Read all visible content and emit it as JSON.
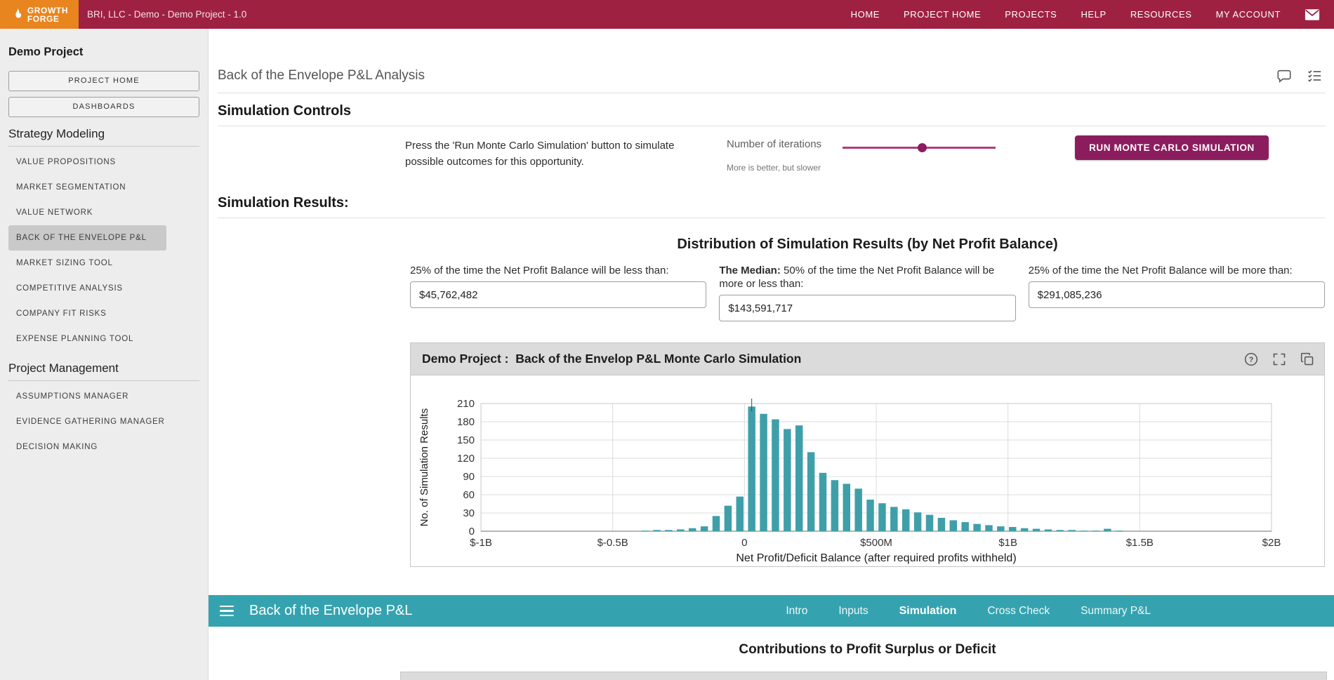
{
  "colors": {
    "topbar": "#9E2142",
    "logo_bg": "#E8851E",
    "accent": "#8b1d5f",
    "teal_bar": "#35A3AF",
    "chart_bar": "#3F9FA9",
    "sidebar_selected": "#c9c9c9"
  },
  "topbar": {
    "logo_line1": "GROWTH",
    "logo_line2": "FORGE",
    "breadcrumb": "BRI, LLC - Demo - Demo Project - 1.0",
    "nav": [
      "HOME",
      "PROJECT HOME",
      "PROJECTS",
      "HELP",
      "RESOURCES",
      "MY ACCOUNT"
    ]
  },
  "sidebar": {
    "project_title": "Demo Project",
    "buttons": [
      "PROJECT HOME",
      "DASHBOARDS"
    ],
    "sections": [
      {
        "title": "Strategy Modeling",
        "items": [
          "VALUE PROPOSITIONS",
          "MARKET SEGMENTATION",
          "VALUE NETWORK",
          "BACK OF THE ENVELOPE P&L",
          "MARKET SIZING TOOL",
          "COMPETITIVE ANALYSIS",
          "COMPANY FIT RISKS",
          "EXPENSE PLANNING TOOL"
        ],
        "selected_index": 3
      },
      {
        "title": "Project Management",
        "items": [
          "ASSUMPTIONS MANAGER",
          "EVIDENCE GATHERING MANAGER",
          "DECISION MAKING"
        ]
      }
    ]
  },
  "main": {
    "page_title": "Back of the Envelope P&L Analysis",
    "controls": {
      "heading": "Simulation Controls",
      "instruction": "Press the 'Run Monte Carlo Simulation' button to simulate possible outcomes for this opportunity.",
      "iterations_label": "Number of iterations",
      "iterations_note": "More is better, but slower",
      "slider_position_pct": 52,
      "run_button": "RUN MONTE CARLO SIMULATION"
    },
    "results": {
      "heading": "Simulation Results:",
      "distribution_title": "Distribution of Simulation Results (by Net Profit Balance)",
      "stats": [
        {
          "label_prefix": "",
          "label_rest": "25% of the time the Net Profit Balance will be less than:",
          "value": "$45,762,482"
        },
        {
          "label_prefix": "The Median:",
          "label_rest": " 50% of the time the Net Profit Balance will be more or less than:",
          "value": "$143,591,717"
        },
        {
          "label_prefix": "",
          "label_rest": "25% of the time the Net Profit Balance will be more than:",
          "value": "$291,085,236"
        }
      ]
    },
    "footer_bar": {
      "title": "Back of the Envelope P&L",
      "tabs": [
        {
          "label": "Intro",
          "active": false
        },
        {
          "label": "Inputs",
          "active": false
        },
        {
          "label": "Simulation",
          "active": true
        },
        {
          "label": "Cross Check",
          "active": false
        },
        {
          "label": "Summary P&L",
          "active": false
        }
      ]
    },
    "bottom_heading": "Contributions to Profit Surplus or Deficit"
  },
  "chart_data": {
    "type": "bar",
    "title": "Demo Project :  Back of the Envelop P&L Monte Carlo Simulation",
    "xlabel": "Net Profit/Deficit Balance (after required profits withheld)",
    "ylabel": "No. of Simulation Results",
    "grid": true,
    "x_domain_millions": [
      -1000,
      2000
    ],
    "x_ticks": [
      {
        "value_m": -1000,
        "label": "$-1B"
      },
      {
        "value_m": -500,
        "label": "$-0.5B"
      },
      {
        "value_m": 0,
        "label": "0"
      },
      {
        "value_m": 500,
        "label": "$500M"
      },
      {
        "value_m": 1000,
        "label": "$1B"
      },
      {
        "value_m": 1500,
        "label": "$1.5B"
      },
      {
        "value_m": 2000,
        "label": "$2B"
      }
    ],
    "y_ticks": [
      0,
      30,
      60,
      90,
      120,
      150,
      180,
      210
    ],
    "ylim": [
      0,
      210
    ],
    "bin_start_m": -400,
    "bin_width_m": 45,
    "counts": [
      1,
      2,
      2,
      3,
      5,
      8,
      25,
      42,
      57,
      205,
      193,
      184,
      168,
      174,
      130,
      96,
      84,
      78,
      70,
      52,
      46,
      40,
      36,
      31,
      27,
      22,
      18,
      15,
      12,
      10,
      8,
      7,
      5,
      4,
      3,
      2,
      2,
      1,
      1,
      4,
      1
    ],
    "bar_color": "#3F9FA9"
  }
}
